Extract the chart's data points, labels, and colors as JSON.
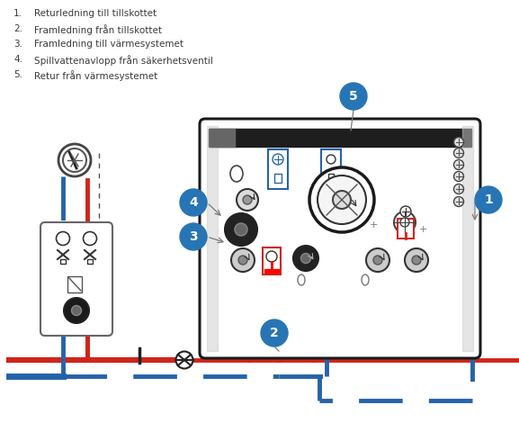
{
  "legend_items": [
    {
      "num": "1.",
      "text": "Returledning till tillskottet"
    },
    {
      "num": "2.",
      "text": "Framledning från tillskottet"
    },
    {
      "num": "3.",
      "text": "Framledning till värmesystemet"
    },
    {
      "num": "4.",
      "text": "Spillvattenavlopp från säkerhetsventil"
    },
    {
      "num": "5.",
      "text": "Retur från värmesystemet"
    }
  ],
  "bubble_color": "#2775b5",
  "bubble_text_color": "white",
  "red_color": "#d0251a",
  "blue_dashed_color": "#2563a8",
  "black_color": "#1a1a1a",
  "bg_color": "#ffffff",
  "text_color": "#3a3a3a",
  "gray_dark": "#2a2a2a",
  "gray_mid": "#555555",
  "gray_light": "#aaaaaa"
}
